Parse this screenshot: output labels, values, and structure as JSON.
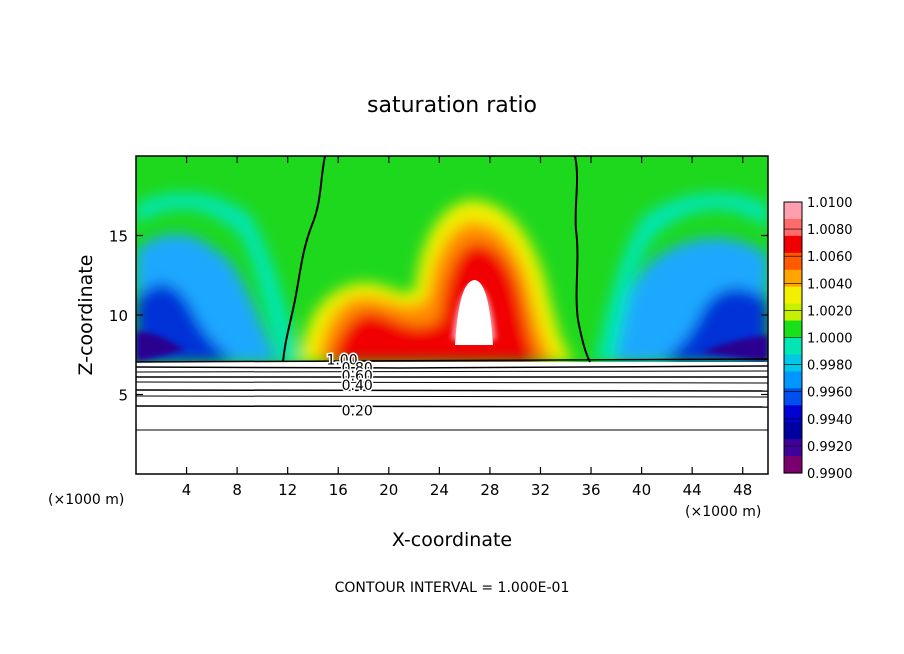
{
  "chart_data": {
    "type": "contour",
    "title": "saturation ratio",
    "xlabel": "X-coordinate",
    "ylabel": "Z-coordinate",
    "x_unit_left": "(×1000 m)",
    "x_unit_right": "(×1000 m)",
    "footer": "CONTOUR INTERVAL = 1.000E-01",
    "xlim": [
      0,
      50
    ],
    "ylim": [
      0,
      20
    ],
    "x_ticks": [
      4,
      8,
      12,
      16,
      20,
      24,
      28,
      32,
      36,
      40,
      44,
      48
    ],
    "y_ticks": [
      5,
      10,
      15
    ],
    "colorbar": {
      "labels": [
        "1.0100",
        "1.0080",
        "1.0060",
        "1.0040",
        "1.0020",
        "1.0000",
        "0.9980",
        "0.9960",
        "0.9940",
        "0.9920",
        "0.9900"
      ],
      "colors": [
        "#ff9fae",
        "#ff6a6a",
        "#f00000",
        "#ff5a00",
        "#ffa500",
        "#f0f000",
        "#c6f000",
        "#19e019",
        "#00e6b4",
        "#00c8e6",
        "#0096ff",
        "#0050f0",
        "#0000d2",
        "#0000a0",
        "#40009a",
        "#7a006e"
      ]
    },
    "contour_labels": [
      {
        "text": "1.00",
        "x": 16.3,
        "y": 7.2
      },
      {
        "text": "0.80",
        "x": 17.5,
        "y": 6.7
      },
      {
        "text": "0.60",
        "x": 17.5,
        "y": 6.2
      },
      {
        "text": "0.40",
        "x": 17.5,
        "y": 5.6
      },
      {
        "text": "0.20",
        "x": 17.5,
        "y": 4.0
      }
    ]
  }
}
